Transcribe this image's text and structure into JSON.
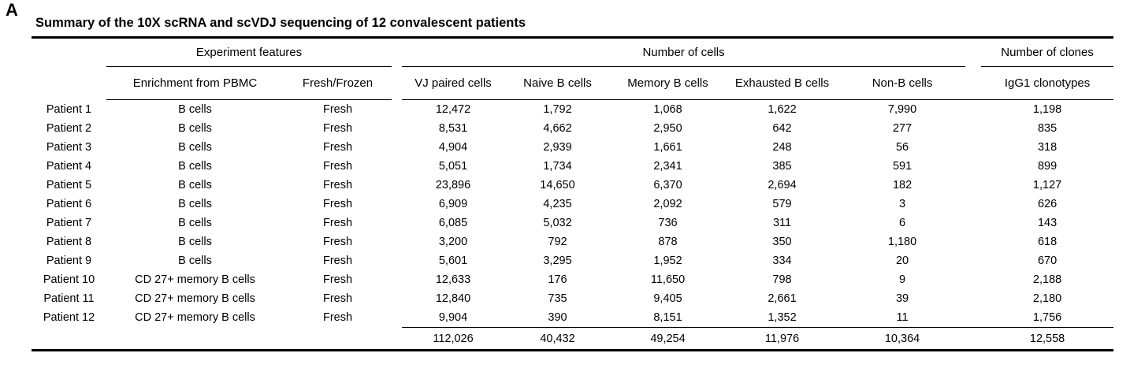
{
  "panel_label": "A",
  "title": "Summary of the 10X scRNA and scVDJ sequencing of 12 convalescent patients",
  "table": {
    "group_headers": [
      "Experiment features",
      "Number of cells",
      "Number of clones"
    ],
    "column_headers": [
      "Enrichment from PBMC",
      "Fresh/Frozen",
      "VJ paired cells",
      "Naive B cells",
      "Memory B cells",
      "Exhausted B cells",
      "Non-B cells",
      "IgG1 clonotypes"
    ],
    "rows": [
      {
        "patient": "Patient 1",
        "enrichment": "B cells",
        "fresh_frozen": "Fresh",
        "vj_paired_cells": "12,472",
        "naive_b_cells": "1,792",
        "memory_b_cells": "1,068",
        "exhausted_b_cells": "1,622",
        "non_b_cells": "7,990",
        "igg1_clonotypes": "1,198"
      },
      {
        "patient": "Patient 2",
        "enrichment": "B cells",
        "fresh_frozen": "Fresh",
        "vj_paired_cells": "8,531",
        "naive_b_cells": "4,662",
        "memory_b_cells": "2,950",
        "exhausted_b_cells": "642",
        "non_b_cells": "277",
        "igg1_clonotypes": "835"
      },
      {
        "patient": "Patient 3",
        "enrichment": "B cells",
        "fresh_frozen": "Fresh",
        "vj_paired_cells": "4,904",
        "naive_b_cells": "2,939",
        "memory_b_cells": "1,661",
        "exhausted_b_cells": "248",
        "non_b_cells": "56",
        "igg1_clonotypes": "318"
      },
      {
        "patient": "Patient 4",
        "enrichment": "B cells",
        "fresh_frozen": "Fresh",
        "vj_paired_cells": "5,051",
        "naive_b_cells": "1,734",
        "memory_b_cells": "2,341",
        "exhausted_b_cells": "385",
        "non_b_cells": "591",
        "igg1_clonotypes": "899"
      },
      {
        "patient": "Patient 5",
        "enrichment": "B cells",
        "fresh_frozen": "Fresh",
        "vj_paired_cells": "23,896",
        "naive_b_cells": "14,650",
        "memory_b_cells": "6,370",
        "exhausted_b_cells": "2,694",
        "non_b_cells": "182",
        "igg1_clonotypes": "1,127"
      },
      {
        "patient": "Patient 6",
        "enrichment": "B cells",
        "fresh_frozen": "Fresh",
        "vj_paired_cells": "6,909",
        "naive_b_cells": "4,235",
        "memory_b_cells": "2,092",
        "exhausted_b_cells": "579",
        "non_b_cells": "3",
        "igg1_clonotypes": "626"
      },
      {
        "patient": "Patient 7",
        "enrichment": "B cells",
        "fresh_frozen": "Fresh",
        "vj_paired_cells": "6,085",
        "naive_b_cells": "5,032",
        "memory_b_cells": "736",
        "exhausted_b_cells": "311",
        "non_b_cells": "6",
        "igg1_clonotypes": "143"
      },
      {
        "patient": "Patient 8",
        "enrichment": "B cells",
        "fresh_frozen": "Fresh",
        "vj_paired_cells": "3,200",
        "naive_b_cells": "792",
        "memory_b_cells": "878",
        "exhausted_b_cells": "350",
        "non_b_cells": "1,180",
        "igg1_clonotypes": "618"
      },
      {
        "patient": "Patient 9",
        "enrichment": "B cells",
        "fresh_frozen": "Fresh",
        "vj_paired_cells": "5,601",
        "naive_b_cells": "3,295",
        "memory_b_cells": "1,952",
        "exhausted_b_cells": "334",
        "non_b_cells": "20",
        "igg1_clonotypes": "670"
      },
      {
        "patient": "Patient 10",
        "enrichment": "CD 27+ memory B cells",
        "fresh_frozen": "Fresh",
        "vj_paired_cells": "12,633",
        "naive_b_cells": "176",
        "memory_b_cells": "11,650",
        "exhausted_b_cells": "798",
        "non_b_cells": "9",
        "igg1_clonotypes": "2,188"
      },
      {
        "patient": "Patient 11",
        "enrichment": "CD 27+ memory B cells",
        "fresh_frozen": "Fresh",
        "vj_paired_cells": "12,840",
        "naive_b_cells": "735",
        "memory_b_cells": "9,405",
        "exhausted_b_cells": "2,661",
        "non_b_cells": "39",
        "igg1_clonotypes": "2,180"
      },
      {
        "patient": "Patient 12",
        "enrichment": "CD 27+ memory B cells",
        "fresh_frozen": "Fresh",
        "vj_paired_cells": "9,904",
        "naive_b_cells": "390",
        "memory_b_cells": "8,151",
        "exhausted_b_cells": "1,352",
        "non_b_cells": "11",
        "igg1_clonotypes": "1,756"
      }
    ],
    "totals": {
      "vj_paired_cells": "112,026",
      "naive_b_cells": "40,432",
      "memory_b_cells": "49,254",
      "exhausted_b_cells": "11,976",
      "non_b_cells": "10,364",
      "igg1_clonotypes": "12,558"
    }
  }
}
